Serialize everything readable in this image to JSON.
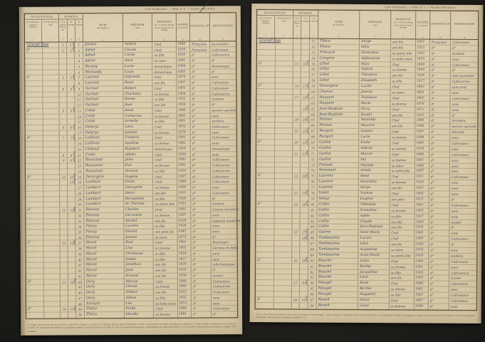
{
  "caption": "Liste Nominative. — Mod. n° 2. — Feuille intercalaire.",
  "colors": {
    "paper": "#d8caa9",
    "ink_handwriting": "#3f4458",
    "ink_printed": "#4e4233",
    "background": "#211f1c"
  },
  "header": {
    "designation": {
      "label": "DÉSIGNATION",
      "sub1": "des communes, villages et hameaux",
      "sub2": "des rues dans les villes",
      "n1": "1",
      "n2": "2"
    },
    "numero": {
      "label": "NUMÉRO",
      "sub1": "de la maison dans la rue",
      "sub2": "du ménage",
      "sub3": "de l'individu",
      "n1": "3",
      "n2": "4",
      "n3": "5"
    },
    "nom": {
      "l1": "NOM",
      "l2": "DE FAMILLE",
      "n": "6"
    },
    "prenom": {
      "l1": "PRÉNOM",
      "l2": "usuel",
      "n": "7"
    },
    "parente": {
      "l1": "PARENTÉ",
      "l2": "soit : le chef de ménage, soit la situation dans le ménage",
      "n": "8"
    },
    "annee": {
      "l1": "ANNÉE",
      "l2": "de naissance",
      "n": "9"
    },
    "nationalite": {
      "l1": "NATIONALITÉ",
      "n": "10"
    },
    "profession": {
      "l1": "PROFESSION",
      "n": "11"
    }
  },
  "left_rows": [
    {
      "d": "Grand'Rue",
      "m": "1",
      "g": "1",
      "b": "{",
      "i": "1",
      "n": "Jacson",
      "p": "Valérie",
      "r": "Chef",
      "a": "1890",
      "t": "Française",
      "f": "Journalière"
    },
    {
      "d": "d°",
      "m": "2",
      "g": "2",
      "b": "{",
      "i": "2",
      "n": "Adnet",
      "p": "Claude",
      "r": "Chef",
      "a": "1876",
      "t": "Française",
      "f": "Cultivateur"
    },
    {
      "i": "3",
      "n": "Adnet",
      "p": "Cécile",
      "r": "sa fille",
      "a": "1920",
      "t": "d°",
      "f": "Cultivatrice"
    },
    {
      "i": "4",
      "n": "Adnet",
      "p": "Alice",
      "r": "sa sœur",
      "a": "1881",
      "t": "d°",
      "f": "d°"
    },
    {
      "i": "5",
      "n": "Bargny",
      "p": "Lucie",
      "r": "domestique",
      "a": "1909",
      "t": "d°",
      "f": "domestique"
    },
    {
      "i": "6",
      "n": "Moissedy",
      "p": "Louis",
      "r": "domestique",
      "a": "1883",
      "t": "d°",
      "f": "d°"
    },
    {
      "d": "d°",
      "m": "3",
      "g": "3",
      "b": "{",
      "i": "7",
      "n": "Laurent",
      "p": "Gabrielle",
      "r": "Chef",
      "a": "1876",
      "t": "d°",
      "f": "sans"
    },
    {
      "i": "8",
      "n": "Laurent",
      "p": "René",
      "r": "son fils",
      "a": "1907",
      "t": "d°",
      "f": "Cultivateur"
    },
    {
      "m": "4",
      "g": "4",
      "b": "{",
      "i": "9",
      "n": "Garinet",
      "p": "Robert",
      "r": "Chef",
      "a": "1901",
      "t": "d°",
      "f": "Cultivateur"
    },
    {
      "i": "10",
      "n": "Garinet",
      "p": "Charlotte",
      "r": "sa femme",
      "a": "1904",
      "t": "d°",
      "f": "Cultivatrice"
    },
    {
      "i": "11",
      "n": "Garinet",
      "p": "Renée",
      "r": "sa fille",
      "a": "1925",
      "t": "d°",
      "f": "écolière"
    },
    {
      "i": "12",
      "n": "Garinet",
      "p": "Jean",
      "r": "son fils",
      "a": "1928",
      "t": "d°",
      "f": "d°"
    },
    {
      "d": "d°",
      "m": "5",
      "g": "5",
      "b": "{",
      "i": "13",
      "n": "Crété",
      "p": "Aimé",
      "r": "Chef",
      "a": "1890",
      "t": "d°",
      "f": "ouvrier agricole"
    },
    {
      "i": "14",
      "n": "Crété",
      "p": "Catherine",
      "r": "sa femme",
      "a": "1891",
      "t": "d°",
      "f": "sans"
    },
    {
      "i": "15",
      "n": "Crété",
      "p": "Armelle",
      "r": "sa fille",
      "a": "1901",
      "t": "d°",
      "f": "écolière"
    },
    {
      "m": "6",
      "g": "6",
      "b": "{",
      "i": "16",
      "n": "Delarys",
      "p": "Léon",
      "r": "Chef",
      "a": "1870",
      "t": "d°",
      "f": "Cultivateur"
    },
    {
      "i": "17",
      "n": "Delarys",
      "p": "Juliette",
      "r": "sa femme",
      "a": "1878",
      "t": "d°",
      "f": "sans"
    },
    {
      "d": "d°",
      "m": "7",
      "g": "7",
      "b": "{",
      "i": "18",
      "n": "Lelièvre",
      "p": "Frédéric",
      "r": "Chef",
      "a": "1901",
      "t": "d°",
      "f": "Cultivateur"
    },
    {
      "i": "19",
      "n": "Lelièvre",
      "p": "Apolline",
      "r": "sa femme",
      "a": "1902",
      "t": "d°",
      "f": "sans"
    },
    {
      "i": "20",
      "n": "Clabaut",
      "p": "Rigobert",
      "r": "domestique",
      "a": "1916",
      "t": "d°",
      "f": "domestique"
    },
    {
      "m": "8",
      "g": "8",
      "b": "{",
      "i": "21",
      "n": "Crété",
      "p": "Adelin",
      "r": "Chef",
      "a": "1868",
      "t": "d°",
      "f": "sans"
    },
    {
      "m": "9",
      "g": "9",
      "b": "{",
      "i": "22",
      "n": "Roussinet",
      "p": "Jules",
      "r": "Chef",
      "a": "1883",
      "t": "d°",
      "f": "Cultivateur"
    },
    {
      "i": "23",
      "n": "Roussinet",
      "p": "Eva",
      "r": "sa femme",
      "a": "1891",
      "t": "d°",
      "f": "Cultivatrice"
    },
    {
      "i": "24",
      "n": "Roussinet",
      "p": "Simone",
      "r": "sa fille",
      "a": "1924",
      "t": "d°",
      "f": "Cultivatrice"
    },
    {
      "d": "d°",
      "m": "10",
      "g": "10",
      "b": "{",
      "i": "25",
      "n": "Devergère",
      "p": "Eugène",
      "r": "Chef",
      "a": "1907",
      "t": "d°",
      "f": "Cultivateur"
    },
    {
      "g": "11",
      "b": "{",
      "i": "26",
      "n": "Lambert",
      "p": "Émile",
      "r": "Chef",
      "a": "1888",
      "t": "d°",
      "f": "Cultivateur"
    },
    {
      "i": "27",
      "n": "Lambert",
      "p": "Georgette",
      "r": "sa femme",
      "a": "1898",
      "t": "d°",
      "f": "sans"
    },
    {
      "i": "28",
      "n": "Lambert",
      "p": "Henri",
      "r": "son fils",
      "a": "1915",
      "t": "d°",
      "f": "Cultivateur"
    },
    {
      "i": "29",
      "n": "Lambert",
      "p": "Bernadette",
      "r": "sa fille",
      "a": "1920",
      "t": "d°",
      "f": "d°"
    },
    {
      "i": "30",
      "n": "Lambert",
      "p": "M.-Thérèse",
      "r": "sa petite fille",
      "a": "1933",
      "t": "d°",
      "f": "écolière"
    },
    {
      "d": "d°",
      "m": "11",
      "g": "12",
      "b": "{",
      "i": "31",
      "n": "Étienne",
      "p": "Charles",
      "r": "Chef",
      "a": "1891",
      "t": "d°",
      "f": "Garçon maréchal"
    },
    {
      "i": "32",
      "n": "Étienne",
      "p": "Germaine",
      "r": "sa femme",
      "a": "1897",
      "t": "d°",
      "f": "sans"
    },
    {
      "i": "33",
      "n": "Étienne",
      "p": "Michel",
      "r": "son fils",
      "a": "1920",
      "t": "d°",
      "f": "apprenti maréchal"
    },
    {
      "i": "34",
      "n": "Poissy",
      "p": "Lucette",
      "r": "sa fille",
      "a": "1926",
      "t": "d°",
      "f": "sans"
    },
    {
      "i": "35",
      "n": "Poissy",
      "p": "Gérald",
      "r": "son petit fils",
      "a": "1945",
      "t": "d°",
      "f": "sans"
    },
    {
      "i": "36",
      "n": "Étienne",
      "p": "Jeanne",
      "r": "sa mère",
      "a": "1873",
      "t": "d°",
      "f": "d°"
    },
    {
      "d": "d°",
      "m": "12",
      "g": "13",
      "b": "{",
      "i": "37",
      "n": "Murel",
      "p": "Paul",
      "r": "Chef",
      "a": "1891",
      "t": "d°",
      "f": "Boulanger"
    },
    {
      "i": "38",
      "n": "Murel",
      "p": "Lina",
      "r": "sa femme",
      "a": "1902",
      "t": "d°",
      "f": "Gérante de débit"
    },
    {
      "i": "39",
      "n": "Murel",
      "p": "Christiane",
      "r": "sa fille",
      "a": "1924",
      "t": "d°",
      "f": "sans"
    },
    {
      "i": "40",
      "n": "Murel",
      "p": "Gisèle",
      "r": "sa fille",
      "a": "1927",
      "t": "d°",
      "f": "sans"
    },
    {
      "i": "41",
      "n": "Murel",
      "p": "Jonathan",
      "r": "son fils",
      "a": "1929",
      "t": "d°",
      "f": "aide boulanger"
    },
    {
      "i": "42",
      "n": "Murel",
      "p": "Jean",
      "r": "son fils",
      "a": "1931",
      "t": "d°",
      "f": "d°"
    },
    {
      "i": "43",
      "n": "Murel",
      "p": "Arnaud",
      "r": "son fils",
      "a": "1934",
      "t": "d°",
      "f": "écolier"
    },
    {
      "d": "d°",
      "m": "13",
      "g": "14",
      "b": "{",
      "i": "44",
      "n": "Oury",
      "p": "Marius",
      "r": "Chef",
      "a": "1900",
      "t": "d°",
      "f": "Cultivateur"
    },
    {
      "i": "45",
      "n": "Oury",
      "p": "Léonie",
      "r": "sa femme",
      "a": "1900",
      "t": "d°",
      "f": "Cultivatrice"
    },
    {
      "i": "46",
      "n": "Oury",
      "p": "Gilbert",
      "r": "son fils",
      "a": "1925",
      "t": "d°",
      "f": "Cultivateur"
    },
    {
      "i": "47",
      "n": "Oury",
      "p": "Aliène",
      "r": "sa fille",
      "a": "1932",
      "t": "d°",
      "f": "sans"
    },
    {
      "i": "48",
      "n": "Arcourt",
      "p": "Léa",
      "r": "sa belle-mère",
      "a": "1873",
      "t": "d°",
      "f": "sans"
    },
    {
      "d": "d°",
      "m": "14",
      "g": "15",
      "b": "{",
      "i": "49",
      "n": "Théco",
      "p": "Émile",
      "r": "Chef",
      "a": "1884",
      "t": "d°",
      "f": "Cultivateur"
    },
    {
      "i": "50",
      "n": "Théco",
      "p": "Marthe",
      "r": "sa femme",
      "a": "1891",
      "t": "d°",
      "f": "d°"
    }
  ],
  "right_rows": [
    {
      "d": "Grand'Rue",
      "i": "51",
      "n": "Théco",
      "p": "Serge",
      "r": "son fils",
      "a": "1921",
      "t": "Française",
      "f": "Cultivateur"
    },
    {
      "i": "52",
      "n": "Théco",
      "p": "Félix",
      "r": "son fils",
      "a": "1923",
      "t": "d°",
      "f": "d°"
    },
    {
      "i": "53",
      "n": "Frécourt",
      "p": "Geneviève",
      "r": "sa petite fille",
      "a": "1933",
      "t": "d°",
      "f": "écolière"
    },
    {
      "i": "54",
      "n": "Congres",
      "p": "Alphonsine",
      "r": "sa belle-mère",
      "a": "1870",
      "t": "d°",
      "f": "sans"
    },
    {
      "d": "d°",
      "m": "15",
      "g": "16",
      "b": "{",
      "i": "55",
      "n": "Gillot",
      "p": "Marc",
      "r": "Chef",
      "a": "1899",
      "t": "d°",
      "f": "Cultivateur"
    },
    {
      "i": "56",
      "n": "Gillot",
      "p": "Valérie",
      "r": "sa femme",
      "a": "1900",
      "t": "d°",
      "f": "d°"
    },
    {
      "i": "57",
      "n": "Gillot",
      "p": "Théodore",
      "r": "son fils",
      "a": "1928",
      "t": "d°",
      "f": "aide journalier"
    },
    {
      "i": "58",
      "n": "Gillot",
      "p": "Élisabeth",
      "r": "sa fille",
      "a": "1927",
      "t": "d°",
      "f": "Cultivatrice"
    },
    {
      "d": "d°",
      "m": "16",
      "g": "17",
      "b": "{",
      "i": "59",
      "n": "Devergère",
      "p": "Lucile",
      "r": "Chef",
      "a": "1860",
      "t": "d°",
      "f": "sans prof."
    },
    {
      "i": "60",
      "n": "Chancé",
      "p": "Jeanne",
      "r": "sa nièce",
      "a": "1891",
      "t": "d°",
      "f": "sans"
    },
    {
      "m": "17",
      "g": "18",
      "b": "{",
      "i": "61",
      "n": "Haquert",
      "p": "Théodore",
      "r": "Chef",
      "a": "1865",
      "t": "d°",
      "f": "Cultivateur"
    },
    {
      "i": "62",
      "n": "Haquert",
      "p": "Marie",
      "r": "sa femme",
      "a": "1876",
      "t": "d°",
      "f": "sans"
    },
    {
      "g": "19",
      "b": "{",
      "i": "63",
      "n": "Jean-Baptiste",
      "p": "Flora",
      "r": "Chef",
      "a": "1913",
      "t": "d°",
      "f": "sans"
    },
    {
      "i": "64",
      "n": "Jean-Baptiste",
      "p": "Daniel",
      "r": "son fils",
      "a": "1931",
      "t": "d°",
      "f": "d°"
    },
    {
      "d": "d°",
      "m": "18",
      "g": "20",
      "b": "{",
      "i": "65",
      "n": "Périnet",
      "p": "Mathilde",
      "r": "Chef",
      "a": "1886",
      "t": "d°",
      "f": "Fermière"
    },
    {
      "i": "66",
      "n": "Périnet",
      "p": "Maurice",
      "r": "son fils",
      "a": "1908",
      "t": "d°",
      "f": "ouvrier agricole"
    },
    {
      "m": "19",
      "g": "21",
      "b": "{",
      "i": "67",
      "n": "Burgart",
      "p": "Gaston",
      "r": "Chef",
      "a": "1897",
      "t": "d°",
      "f": "Retraité"
    },
    {
      "i": "68",
      "n": "Burgart",
      "p": "Lucie",
      "r": "sa femme",
      "a": "1898",
      "t": "d°",
      "f": "sans"
    },
    {
      "d": "d°",
      "m": "20",
      "g": "22",
      "b": "{",
      "i": "69",
      "n": "Guillot",
      "p": "Émile",
      "r": "Chef",
      "a": "1901",
      "t": "d°",
      "f": "Cultivateur"
    },
    {
      "i": "70",
      "n": "Guillot",
      "p": "Valérie",
      "r": "sa femme",
      "a": "1919",
      "t": "d°",
      "f": "sans"
    },
    {
      "m": "21",
      "g": "23",
      "b": "{",
      "i": "71",
      "n": "Guillot",
      "p": "Marcel",
      "r": "Chef",
      "a": "1886",
      "t": "d°",
      "f": "Cultivateur"
    },
    {
      "i": "72",
      "n": "Guillot",
      "p": "Ida",
      "r": "sa femme",
      "a": "1891",
      "t": "d°",
      "f": "sans"
    },
    {
      "i": "73",
      "n": "Prévost",
      "p": "Olympe",
      "r": "sa mère",
      "a": "1868",
      "t": "d°",
      "f": "sans"
    },
    {
      "i": "74",
      "n": "Simonnet",
      "p": "Aimée",
      "r": "sa belle-fille",
      "a": "1897",
      "t": "d°",
      "f": "sans"
    },
    {
      "d": "d°",
      "m": "22",
      "g": "24",
      "b": "{",
      "i": "75",
      "n": "Laurent",
      "p": "René",
      "r": "Chef",
      "a": "1911",
      "t": "d°",
      "f": "Cultivateur"
    },
    {
      "i": "76",
      "n": "Laurent",
      "p": "Henriette",
      "r": "sa femme",
      "a": "1920",
      "t": "d°",
      "f": "sans"
    },
    {
      "i": "77",
      "n": "Laurent",
      "p": "Serge",
      "r": "son fils",
      "a": "1941",
      "t": "d°",
      "f": "sans"
    },
    {
      "m": "23",
      "g": "25",
      "b": "{",
      "i": "78",
      "n": "Voilet",
      "p": "Yvonne",
      "r": "Chef",
      "a": "1895",
      "t": "d°",
      "f": "sans"
    },
    {
      "i": "79",
      "n": "Soltys",
      "p": "Eugène",
      "r": "son père",
      "a": "1871",
      "t": "d°",
      "f": "d°"
    },
    {
      "d": "d°",
      "m": "24",
      "g": "26",
      "b": "{",
      "i": "80",
      "n": "Collin",
      "p": "Théodule",
      "r": "Chef",
      "a": "1901",
      "t": "d°",
      "f": "Cultivateur"
    },
    {
      "i": "81",
      "n": "Collin",
      "p": "Ernestine",
      "r": "sa femme",
      "a": "1905",
      "t": "d°",
      "f": "sans"
    },
    {
      "i": "82",
      "n": "Collin",
      "p": "Adèle",
      "r": "sa fille",
      "a": "1927",
      "t": "d°",
      "f": "sans"
    },
    {
      "i": "83",
      "n": "Collin",
      "p": "Claude",
      "r": "son fils",
      "a": "1930",
      "t": "d°",
      "f": "écolier"
    },
    {
      "i": "84",
      "n": "Collin",
      "p": "Jean-Baptiste",
      "r": "son fils",
      "a": "1934",
      "t": "d°",
      "f": "d°"
    },
    {
      "m": "25",
      "g": "27",
      "b": "{",
      "i": "85",
      "n": "Guérin",
      "p": "Anne-Marie",
      "r": "Chef",
      "a": "1881",
      "t": "d°",
      "f": "sans"
    },
    {
      "g": "28",
      "b": "{",
      "i": "86",
      "n": "Tambourine",
      "p": "Lucien",
      "r": "Chef",
      "a": "1900",
      "t": "d°",
      "f": "Cultivateur"
    },
    {
      "i": "87",
      "n": "Tambourine",
      "p": "Léon",
      "r": "son fils",
      "a": "1926",
      "t": "d°",
      "f": "d°"
    },
    {
      "i": "88",
      "n": "Tambourine",
      "p": "Augustine",
      "r": "sa mère",
      "a": "1874",
      "t": "d°",
      "f": "sans"
    },
    {
      "i": "89",
      "n": "Tambourine",
      "p": "Anne-Marie",
      "r": "sa petite fille",
      "a": "1935",
      "t": "d°",
      "f": "écolière"
    },
    {
      "d": "d°",
      "m": "26",
      "g": "29",
      "b": "{",
      "i": "90",
      "n": "Bouché",
      "p": "Louis",
      "r": "Chef",
      "a": "1900",
      "t": "d°",
      "f": "Cultivateur"
    },
    {
      "i": "91",
      "n": "Bouché",
      "p": "Berthe",
      "r": "sa femme",
      "a": "1901",
      "t": "d°",
      "f": "sans"
    },
    {
      "i": "92",
      "n": "Bouché",
      "p": "Jacqueline",
      "r": "sa fille",
      "a": "1926",
      "t": "d°",
      "f": "Cultivatrice"
    },
    {
      "i": "93",
      "n": "Bouché",
      "p": "Léon",
      "r": "son fils",
      "a": "1935",
      "t": "d°",
      "f": "écolier"
    },
    {
      "m": "27",
      "g": "30",
      "b": "{",
      "i": "94",
      "n": "Maugel",
      "p": "René",
      "r": "Chef",
      "a": "1899",
      "t": "d°",
      "f": "Cultivateur"
    },
    {
      "i": "95",
      "n": "Maugel",
      "p": "Berthe",
      "r": "sa femme",
      "a": "1901",
      "t": "d°",
      "f": "sans"
    },
    {
      "i": "96",
      "n": "Maugel",
      "p": "Huguette",
      "r": "sa fille",
      "a": "1925",
      "t": "d°",
      "f": "Cultivatrice"
    },
    {
      "d": "d°",
      "m": "28",
      "g": "31",
      "b": "{",
      "i": "97",
      "n": "Benoît",
      "p": "Henri",
      "r": "Chef",
      "a": "1887",
      "t": "d°",
      "f": "Cultivateur"
    },
    {
      "i": "98",
      "n": "Benoît",
      "p": "Lucie",
      "r": "sa femme",
      "a": "1890",
      "t": "d°",
      "f": "sans"
    }
  ],
  "footnotes": {
    "left": "(1) L'agent recenseur inscrira une seule fois, en tête de la colonne 1, le nom de la commune, puis les noms des hameaux et écarts ; les noms des rues seront rappelés par la mention d°. Chaque ménage est séparé du suivant par une accolade. Les renseignements relatifs à la population comptée à part seront inscrits à la suite de ceux de la population municipale, conformément aux instructions (Mod. n° 2). Les feuilles intercalaires seront jointes au registre de la commune.",
    "right": "(1) Les noms doivent être inscrits dans l'ordre des maisons et des ménages ; chaque ménage est séparé du suivant par une accolade. Les renseignements relatifs à la population comptée à part seront inscrits à la suite de ceux de la population municipale, conformément aux instructions (Mod. n° 2)."
  }
}
